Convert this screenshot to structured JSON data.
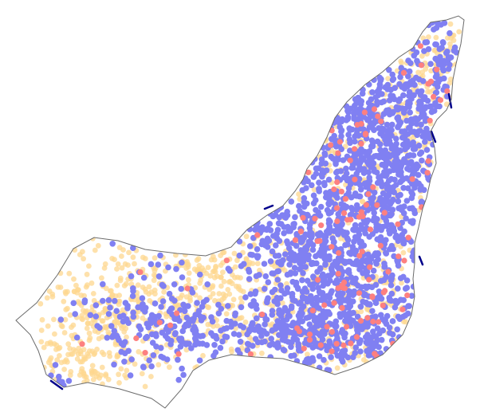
{
  "map": {
    "background": "#ffffff",
    "outline_color": "#6b6b6b",
    "categories": [
      {
        "key": "orange",
        "color": "#fed78f",
        "opacity": 0.75
      },
      {
        "key": "blue",
        "color": "#8080f2",
        "opacity": 1
      },
      {
        "key": "red",
        "color": "#fd8080",
        "opacity": 1
      }
    ],
    "dark_accent_color": "#00008b"
  }
}
